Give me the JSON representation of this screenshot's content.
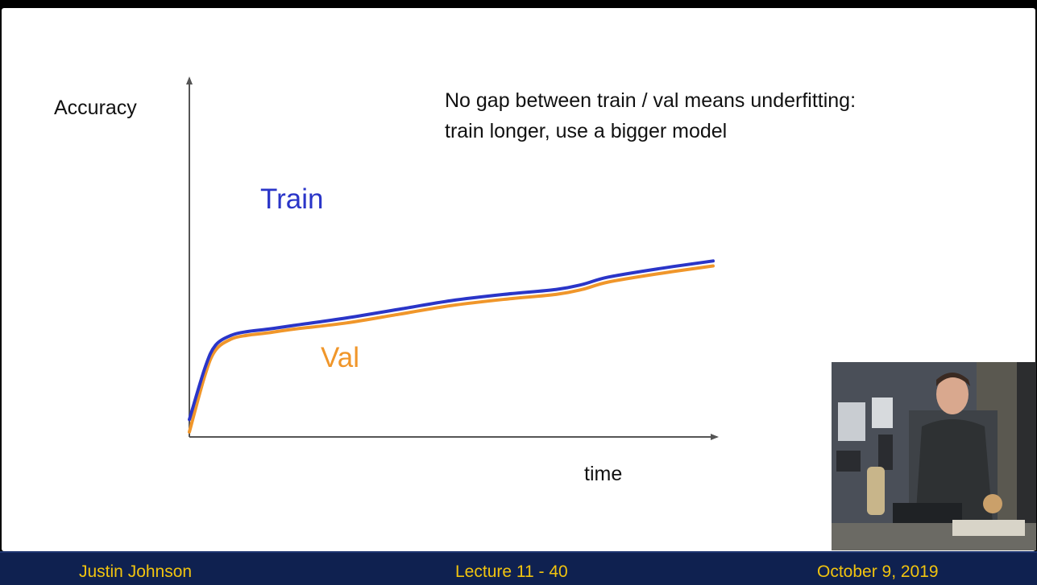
{
  "chart_data": {
    "type": "line",
    "ylabel": "Accuracy",
    "xlabel": "time",
    "xlim": [
      0,
      100
    ],
    "ylim": [
      0,
      100
    ],
    "grid": false,
    "series": [
      {
        "name": "Train",
        "color": "#2a35c8",
        "x": [
          0,
          3,
          5,
          8,
          11,
          15,
          20,
          30,
          40,
          50,
          60,
          70,
          75,
          80,
          90,
          100
        ],
        "y": [
          7,
          28,
          37,
          41,
          42.5,
          43.5,
          45,
          48,
          51.5,
          55,
          57.5,
          59.5,
          61.5,
          64.5,
          68,
          71
        ]
      },
      {
        "name": "Val",
        "color": "#f0962a",
        "x": [
          0,
          3,
          5,
          8,
          11,
          15,
          20,
          30,
          40,
          50,
          60,
          70,
          75,
          80,
          90,
          100
        ],
        "y": [
          2,
          25,
          35,
          39.5,
          41,
          42,
          43.5,
          46,
          49.5,
          53,
          55.5,
          57.5,
          59.5,
          62.5,
          66,
          69
        ]
      }
    ]
  },
  "annotation": "No gap between train / val means underfitting: train longer, use a bigger model",
  "footer": {
    "author": "Justin Johnson",
    "lecture": "Lecture 11 - 40",
    "date": "October 9, 2019"
  }
}
